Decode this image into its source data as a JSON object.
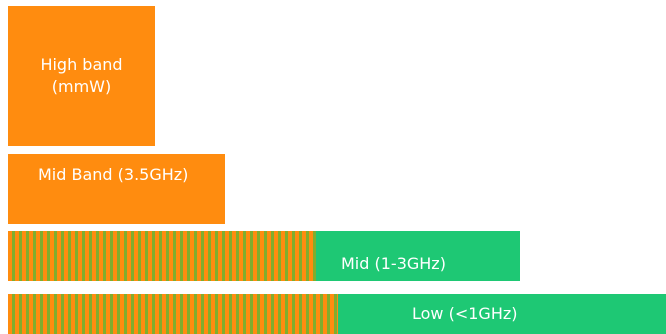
{
  "diagram": {
    "high_band": {
      "line1": "High band",
      "line2": "(mmW)"
    },
    "mid_band": {
      "label": "Mid Band (3.5GHz)"
    },
    "mid": {
      "label": "Mid  (1-3GHz)"
    },
    "low": {
      "label": "Low  (<1GHz)"
    }
  },
  "colors": {
    "orange": "#ff8c0f",
    "green": "#1ec874",
    "stripe_dark": "#7fae2e"
  }
}
